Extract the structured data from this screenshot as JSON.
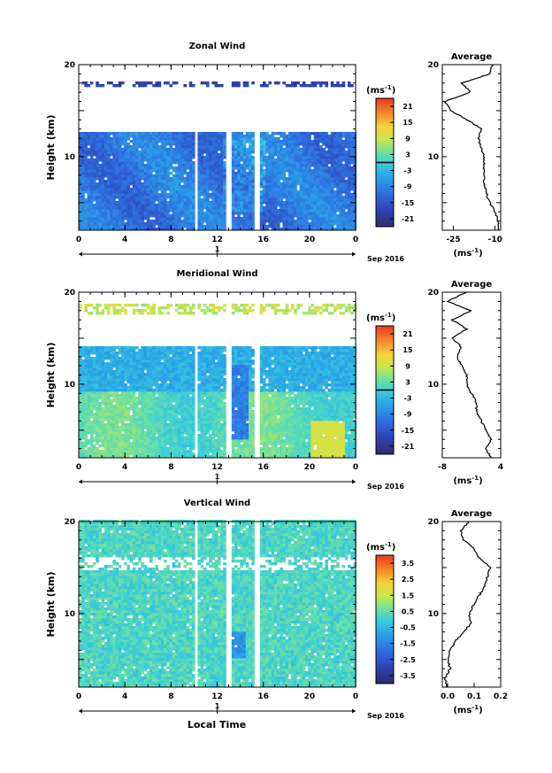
{
  "figure": {
    "xlabel": "Local Time",
    "date_label": "Sep 2016",
    "day_label": "1",
    "ylabel": "Height (km)",
    "unit_label": "(ms",
    "unit_exp": "-1",
    "unit_close": ")",
    "x_ticks": [
      "0",
      "4",
      "8",
      "12",
      "16",
      "20",
      "0"
    ],
    "y_ticks": [
      "20",
      "10"
    ]
  },
  "chart_data": [
    {
      "type": "heatmap",
      "title": "Zonal Wind",
      "xlabel": "Local Time",
      "ylabel": "Height (km)",
      "xlim": [
        0,
        24
      ],
      "ylim": [
        2,
        20
      ],
      "colorbar": {
        "ticks": [
          "21",
          "15",
          "9",
          "3",
          "-3",
          "-9",
          "-15",
          "-21"
        ],
        "range": [
          -24,
          24
        ],
        "zero_line": true
      },
      "gaps_hours": [
        [
          10.0,
          10.3
        ],
        [
          12.7,
          13.1
        ],
        [
          15.2,
          15.6
        ]
      ],
      "data_top_km": 12.5,
      "upper_band_km": [
        17.5,
        18.0
      ],
      "average": {
        "title": "Average",
        "x_ticks": [
          "-25",
          "-10"
        ],
        "xlabel": "(ms",
        "xlim": [
          -29,
          -8
        ],
        "profile": [
          [
            -9,
            2
          ],
          [
            -9,
            3
          ],
          [
            -10,
            4
          ],
          [
            -12,
            5
          ],
          [
            -13,
            6
          ],
          [
            -14,
            7
          ],
          [
            -14,
            8
          ],
          [
            -14,
            9
          ],
          [
            -14,
            10
          ],
          [
            -15,
            11
          ],
          [
            -16,
            12
          ],
          [
            -15,
            13
          ],
          [
            -20,
            14
          ],
          [
            -26,
            15
          ],
          [
            -28,
            16
          ],
          [
            -19,
            17
          ],
          [
            -22,
            18
          ],
          [
            -12,
            19
          ],
          [
            -11,
            20
          ]
        ]
      }
    },
    {
      "type": "heatmap",
      "title": "Meridional Wind",
      "xlabel": "Local Time",
      "ylabel": "Height (km)",
      "xlim": [
        0,
        24
      ],
      "ylim": [
        2,
        20
      ],
      "colorbar": {
        "ticks": [
          "21",
          "15",
          "9",
          "3",
          "-3",
          "-9",
          "-15",
          "-21"
        ],
        "range": [
          -24,
          24
        ],
        "zero_line": true
      },
      "gaps_hours": [
        [
          10.0,
          10.3
        ],
        [
          12.7,
          13.1
        ],
        [
          15.2,
          15.6
        ]
      ],
      "data_top_km": 14.0,
      "upper_band_km": [
        17.5,
        18.5
      ],
      "average": {
        "title": "Average",
        "x_ticks": [
          "-8",
          "4"
        ],
        "xlabel": "(ms",
        "xlim": [
          -8,
          4
        ],
        "profile": [
          [
            2,
            2
          ],
          [
            1,
            3
          ],
          [
            2,
            4
          ],
          [
            1,
            5
          ],
          [
            0,
            6
          ],
          [
            -1,
            7
          ],
          [
            -1,
            8
          ],
          [
            -2,
            9
          ],
          [
            -3,
            10
          ],
          [
            -3,
            11
          ],
          [
            -4,
            12
          ],
          [
            -5,
            13
          ],
          [
            -4,
            14
          ],
          [
            -6,
            15
          ],
          [
            -3,
            16
          ],
          [
            -6,
            17
          ],
          [
            -2,
            18
          ],
          [
            -7,
            19
          ],
          [
            -3,
            20
          ]
        ]
      }
    },
    {
      "type": "heatmap",
      "title": "Vertical Wind",
      "xlabel": "Local Time",
      "ylabel": "Height (km)",
      "xlim": [
        0,
        24
      ],
      "ylim": [
        2,
        20
      ],
      "colorbar": {
        "ticks": [
          "3.5",
          "2.5",
          "1.5",
          "0.5",
          "-0.5",
          "-1.5",
          "-2.5",
          "-3.5"
        ],
        "range": [
          -4,
          4
        ],
        "zero_line": false
      },
      "gaps_hours": [
        [
          10.0,
          10.3
        ],
        [
          12.7,
          13.1
        ],
        [
          15.2,
          15.6
        ]
      ],
      "data_top_km": 20.0,
      "upper_band_km": [
        15.0,
        16.0
      ],
      "average": {
        "title": "Average",
        "x_ticks": [
          "0.0",
          "0.1",
          "0.2"
        ],
        "xlabel": "(ms",
        "xlim": [
          -0.02,
          0.2
        ],
        "profile": [
          [
            0.0,
            2
          ],
          [
            -0.01,
            3
          ],
          [
            0.01,
            4
          ],
          [
            0.0,
            5
          ],
          [
            0.01,
            6
          ],
          [
            0.03,
            7
          ],
          [
            0.06,
            8
          ],
          [
            0.09,
            9
          ],
          [
            0.08,
            10
          ],
          [
            0.1,
            11
          ],
          [
            0.12,
            12
          ],
          [
            0.14,
            13
          ],
          [
            0.15,
            14
          ],
          [
            0.16,
            15
          ],
          [
            0.12,
            16
          ],
          [
            0.1,
            17
          ],
          [
            0.06,
            18
          ],
          [
            0.05,
            19
          ],
          [
            0.08,
            20
          ]
        ]
      }
    }
  ]
}
